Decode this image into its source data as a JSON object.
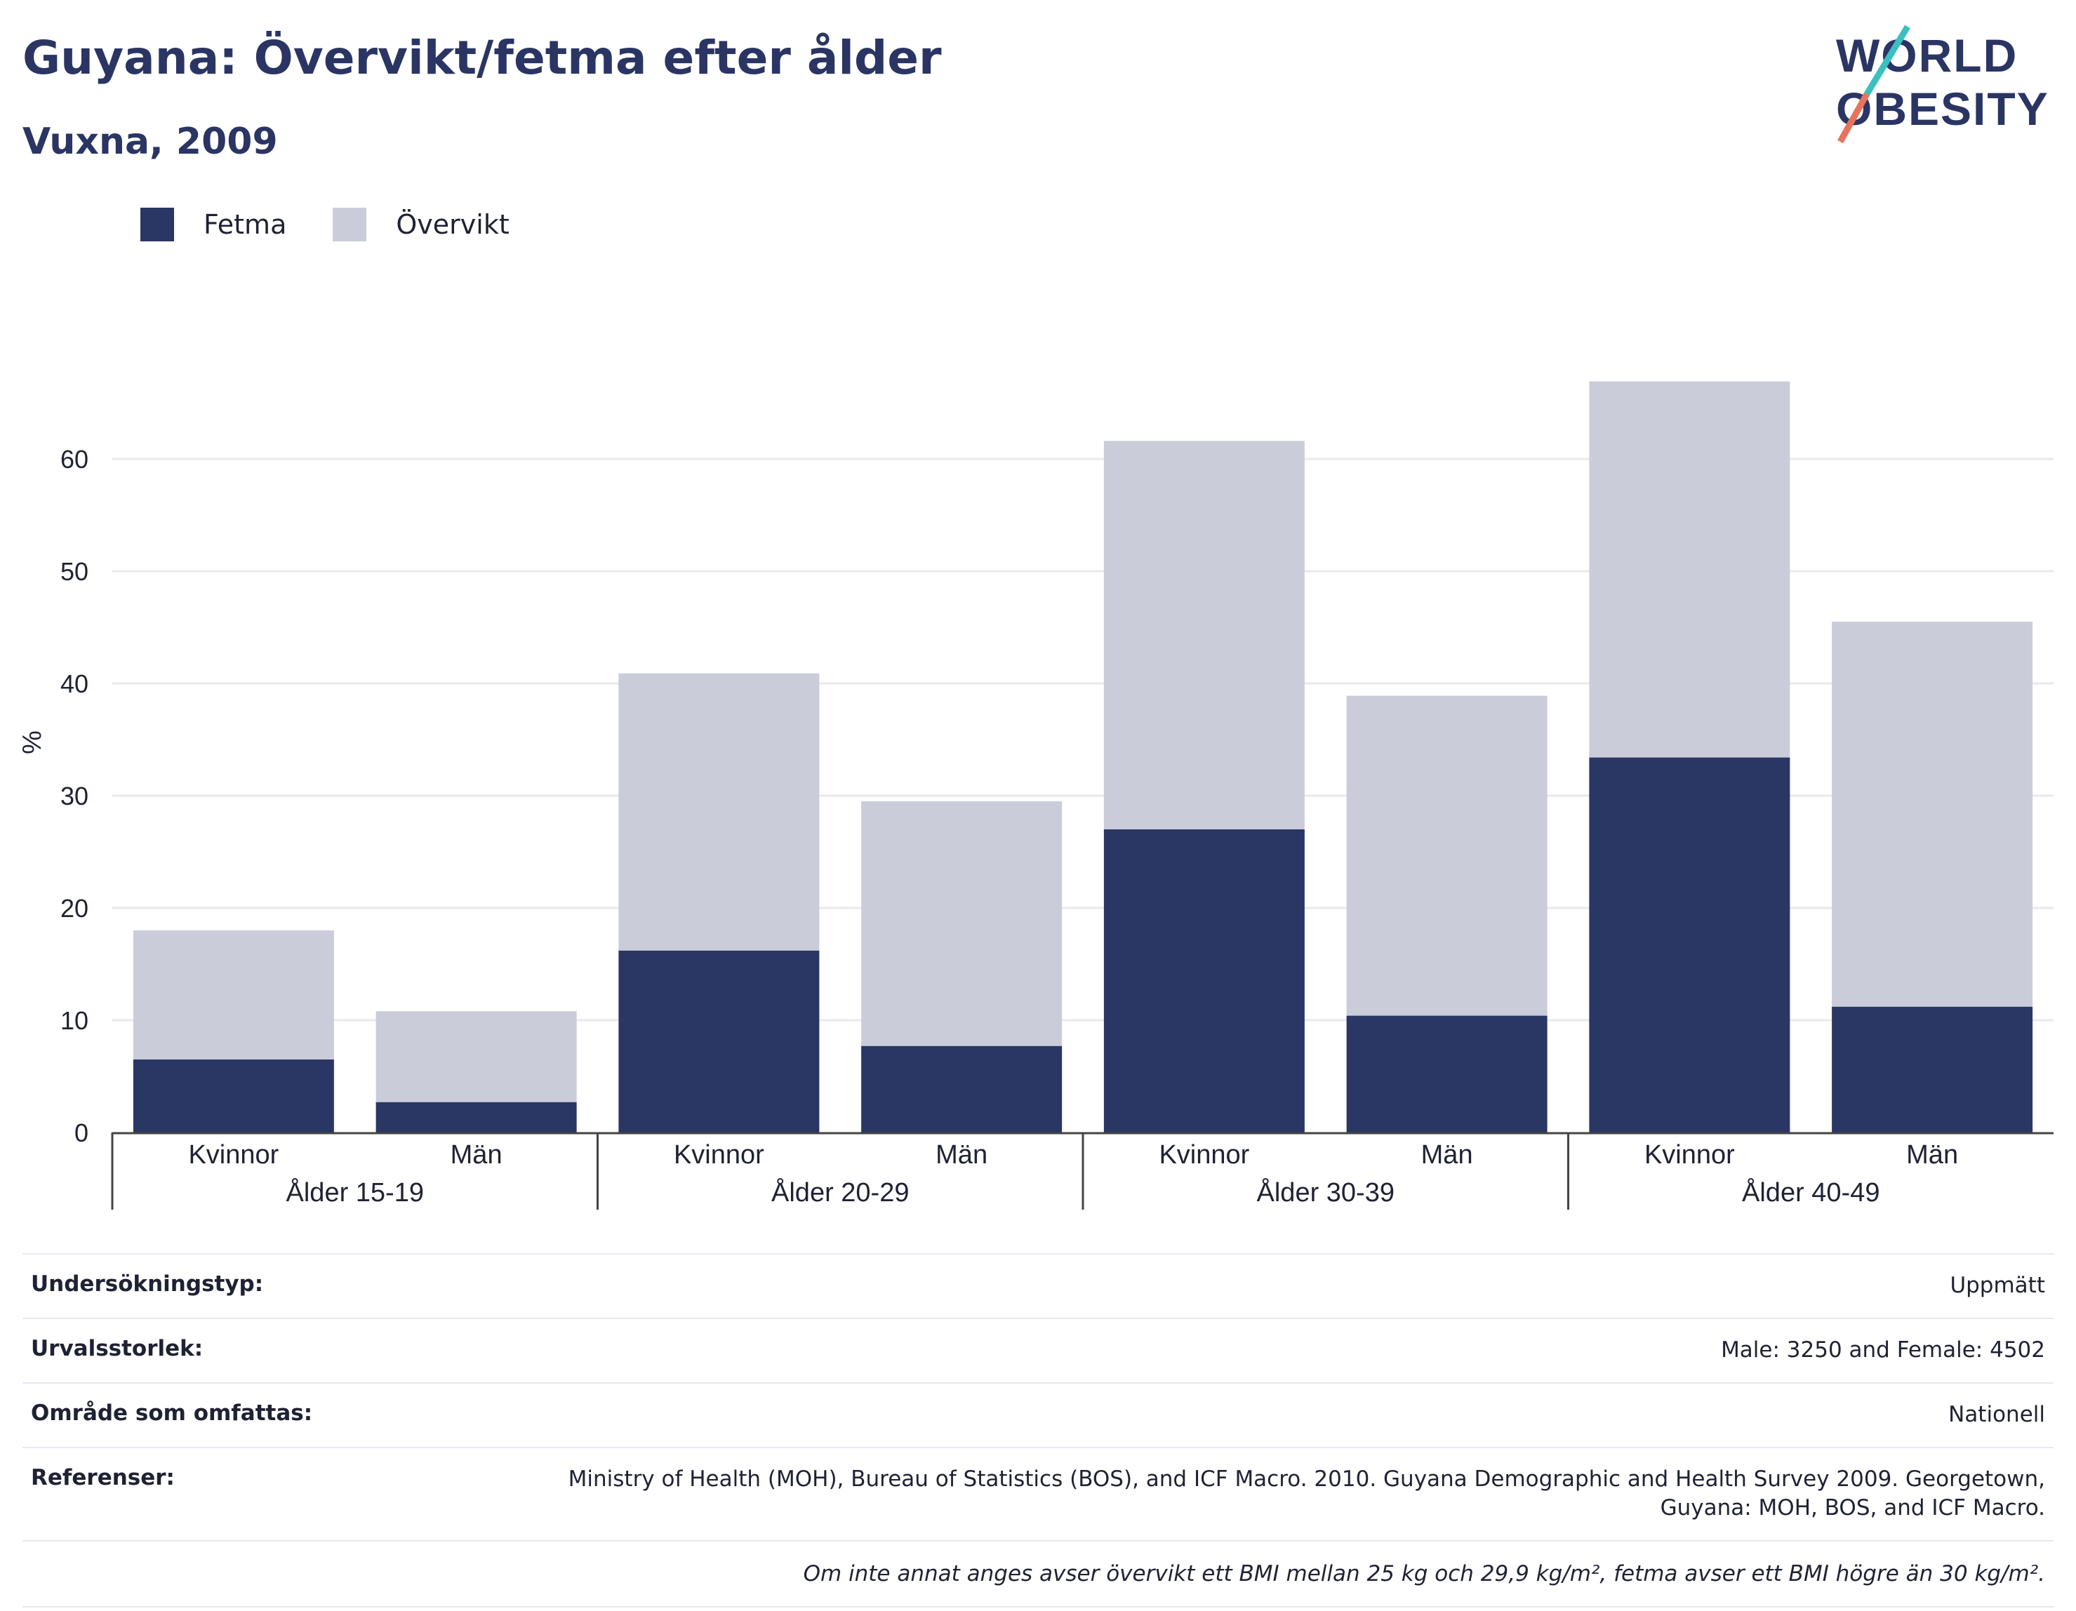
{
  "header": {
    "title": "Guyana: Övervikt/fetma efter ålder",
    "subtitle": "Vuxna, 2009"
  },
  "logo": {
    "line1": "WORLD",
    "line2": "OBESITY",
    "accent_teal": "#3bbfbf",
    "accent_coral": "#e8735a"
  },
  "colors": {
    "fetma": "#2a3663",
    "overvikt": "#cacdd9",
    "title": "#2a3564",
    "grid": "#e9e9ee"
  },
  "legend": [
    {
      "label": "Fetma",
      "color": "#2a3663"
    },
    {
      "label": "Övervikt",
      "color": "#cacdd9"
    }
  ],
  "chart_data": {
    "type": "bar",
    "stacked": true,
    "ylabel": "%",
    "ylim": [
      0,
      70
    ],
    "yticks": [
      0,
      10,
      20,
      30,
      40,
      50,
      60
    ],
    "grid": true,
    "legend_position": "top-left",
    "categories": [
      "Kvinnor",
      "Män",
      "Kvinnor",
      "Män",
      "Kvinnor",
      "Män",
      "Kvinnor",
      "Män"
    ],
    "groups": [
      "Ålder 15-19",
      "Ålder 20-29",
      "Ålder 30-39",
      "Ålder 40-49"
    ],
    "series": [
      {
        "name": "Fetma",
        "values": [
          6.5,
          2.7,
          16.2,
          7.7,
          27.0,
          10.4,
          33.4,
          11.2
        ]
      },
      {
        "name": "Övervikt",
        "values": [
          11.5,
          8.1,
          24.7,
          21.8,
          34.6,
          28.5,
          33.5,
          34.3
        ]
      }
    ]
  },
  "info": {
    "rows": [
      {
        "label": "Undersökningstyp:",
        "value": "Uppmätt"
      },
      {
        "label": "Urvalsstorlek:",
        "value": "Male: 3250 and Female: 4502"
      },
      {
        "label": "Område som omfattas:",
        "value": "Nationell"
      },
      {
        "label": "Referenser:",
        "value": "Ministry of Health (MOH), Bureau of Statistics (BOS), and ICF Macro. 2010. Guyana Demographic and Health Survey 2009. Georgetown, Guyana: MOH, BOS, and ICF Macro."
      }
    ],
    "note": "Om inte annat anges avser övervikt ett BMI mellan 25 kg och 29,9 kg/m², fetma avser ett BMI högre än 30 kg/m²."
  }
}
